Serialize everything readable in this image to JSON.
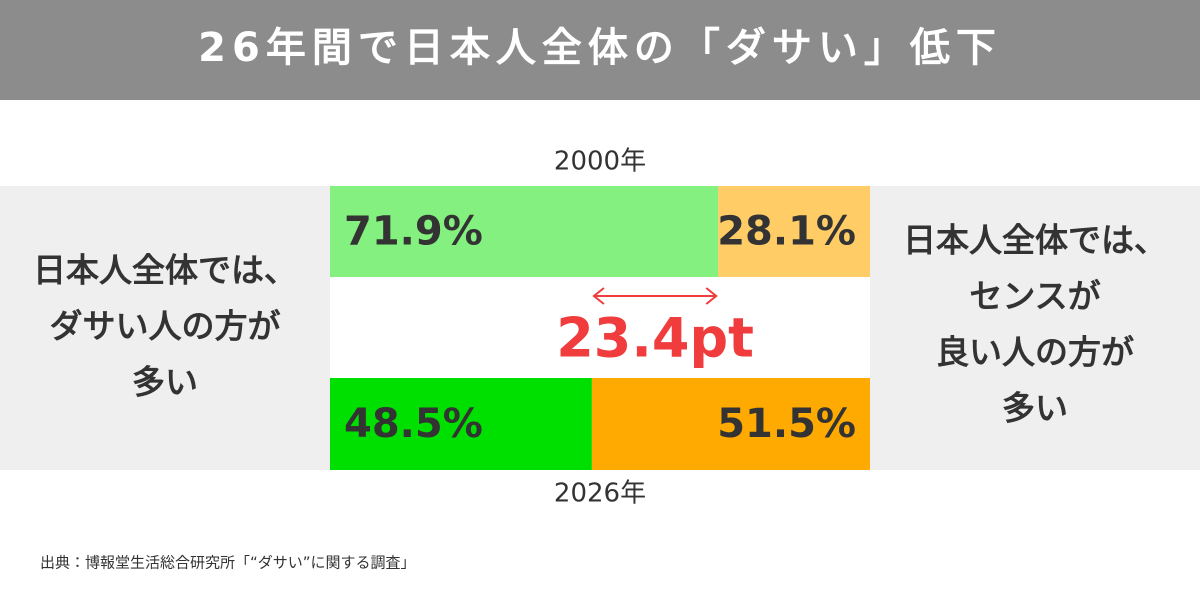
{
  "chart_data": {
    "type": "stacked_bar",
    "orientation": "horizontal",
    "title": "26年間で日本人全体の「ダサい」低下",
    "categories": [
      "2000年",
      "2026年"
    ],
    "xlim": [
      0,
      100
    ],
    "series": [
      {
        "name": [
          "日本人全体では、",
          "ダサい人の方が",
          "多い"
        ],
        "colors": [
          "#84f07f",
          "#00e000"
        ],
        "values": [
          71.9,
          48.5
        ],
        "value_labels": [
          "71.9%",
          "48.5%"
        ]
      },
      {
        "name": [
          "日本人全体では、",
          "センスが",
          "良い人の方が",
          "多い"
        ],
        "colors": [
          "#ffcc66",
          "#ffaa00"
        ],
        "values": [
          28.1,
          51.5
        ],
        "value_labels": [
          "28.1%",
          "51.5%"
        ]
      }
    ],
    "annotation": {
      "text": "23.4pt",
      "color": "#f03c3c"
    },
    "source": "出典：博報堂生活総合研究所「“ダサい”に関する調査」"
  }
}
